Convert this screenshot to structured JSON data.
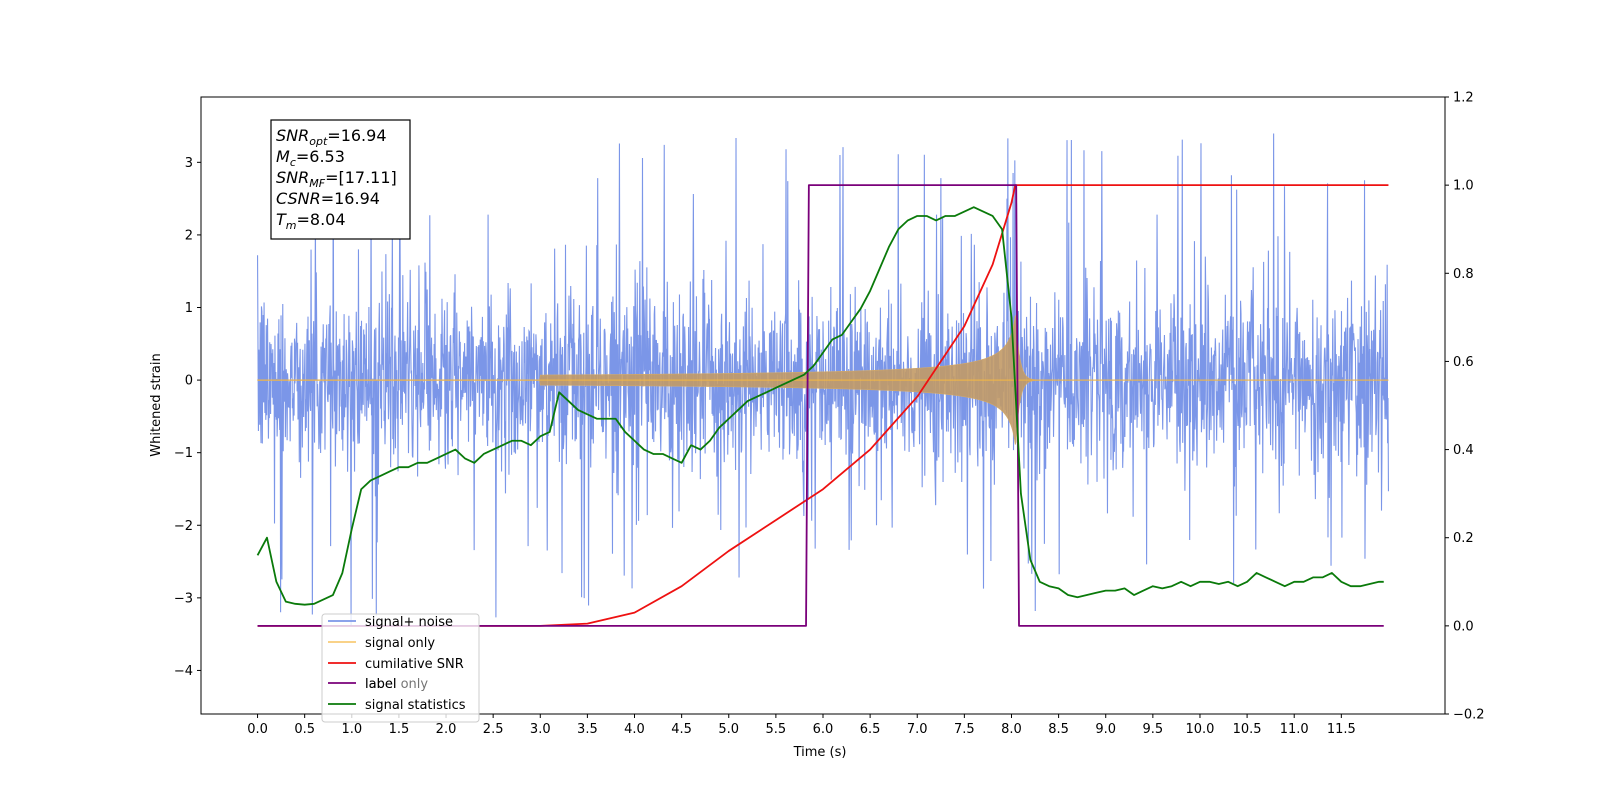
{
  "chart_data": {
    "type": "line",
    "xlabel": "Time (s)",
    "ylabel": "Whitened strain",
    "xlim": [
      -0.6,
      12.6
    ],
    "ylim": [
      -4.6,
      3.9
    ],
    "ylim_right": [
      -0.2,
      1.2
    ],
    "grid": false,
    "legend_position": "lower-left",
    "x_ticks": [
      "0.0",
      "0.5",
      "1.0",
      "1.5",
      "2.0",
      "2.5",
      "3.0",
      "3.5",
      "4.0",
      "4.5",
      "5.0",
      "5.5",
      "6.0",
      "6.5",
      "7.0",
      "7.5",
      "8.0",
      "8.5",
      "9.0",
      "9.5",
      "10.0",
      "10.5",
      "11.0",
      "11.5"
    ],
    "y_ticks_left": [
      "3",
      "2",
      "1",
      "0",
      "−1",
      "−2",
      "−3",
      "−4"
    ],
    "y_ticks_right": [
      "1.2",
      "1.0",
      "0.8",
      "0.6",
      "0.4",
      "0.2",
      "0.0",
      "−0.2"
    ],
    "annotation": {
      "lines": [
        {
          "sym": "SNR",
          "sub": "opt",
          "val": "=16.94"
        },
        {
          "sym": "M",
          "sub": "c",
          "val": "=6.53"
        },
        {
          "sym": "SNR",
          "sub": "MF",
          "val": "=[17.11]"
        },
        {
          "sym": "CSNR",
          "sub": "",
          "val": "=16.94"
        },
        {
          "sym": "T",
          "sub": "m",
          "val": "=8.04"
        }
      ]
    },
    "series": [
      {
        "name": "signal+ noise",
        "color": "#7b96e8",
        "axis": "left",
        "description": "whitened noise, amplitude envelope ~ ±1.3 with spikes up to ±3.5, from 0.0 to 12.0 s",
        "envelope": {
          "low": -1.3,
          "high": 1.3,
          "spike_max": 3.55,
          "spike_min": -4.1
        }
      },
      {
        "name": "signal only",
        "color": "#f5b841",
        "axis": "left",
        "description": "chirp signal growing from t≈3.0 s to merger at t≈8.04 s",
        "chirp": {
          "t_start": 3.0,
          "t_merge": 8.04,
          "peak_amplitude": 1.05
        }
      },
      {
        "name": "cumilative SNR",
        "color": "#ee1111",
        "axis": "right",
        "x": [
          0.0,
          3.0,
          3.5,
          4.0,
          4.5,
          5.0,
          5.5,
          6.0,
          6.5,
          7.0,
          7.5,
          7.8,
          8.0,
          8.04,
          12.0
        ],
        "y": [
          0.0,
          0.0,
          0.005,
          0.03,
          0.09,
          0.17,
          0.24,
          0.31,
          0.4,
          0.52,
          0.68,
          0.82,
          0.96,
          1.0,
          1.0
        ]
      },
      {
        "name": "label",
        "color": "#7a007a",
        "axis": "right",
        "x": [
          0.0,
          5.82,
          5.85,
          8.05,
          8.08,
          11.95
        ],
        "y": [
          0.0,
          0.0,
          1.0,
          1.0,
          0.0,
          0.0
        ]
      },
      {
        "name": "label only",
        "color": "#e8a6e8",
        "axis": "right",
        "x": [],
        "y": []
      },
      {
        "name": "signal statistics",
        "color": "#0a7a0a",
        "axis": "right",
        "x": [
          0.0,
          0.1,
          0.2,
          0.3,
          0.4,
          0.5,
          0.6,
          0.7,
          0.8,
          0.9,
          1.0,
          1.1,
          1.2,
          1.3,
          1.4,
          1.5,
          1.6,
          1.7,
          1.8,
          1.9,
          2.0,
          2.1,
          2.2,
          2.3,
          2.4,
          2.5,
          2.6,
          2.7,
          2.8,
          2.9,
          3.0,
          3.1,
          3.2,
          3.3,
          3.4,
          3.5,
          3.6,
          3.7,
          3.8,
          3.9,
          4.0,
          4.1,
          4.2,
          4.3,
          4.4,
          4.5,
          4.6,
          4.7,
          4.8,
          4.9,
          5.0,
          5.1,
          5.2,
          5.3,
          5.4,
          5.5,
          5.6,
          5.7,
          5.8,
          5.9,
          6.0,
          6.1,
          6.2,
          6.3,
          6.4,
          6.5,
          6.6,
          6.7,
          6.8,
          6.9,
          7.0,
          7.1,
          7.2,
          7.3,
          7.4,
          7.5,
          7.6,
          7.7,
          7.8,
          7.9,
          8.0,
          8.1,
          8.2,
          8.3,
          8.4,
          8.5,
          8.6,
          8.7,
          8.8,
          8.9,
          9.0,
          9.1,
          9.2,
          9.3,
          9.4,
          9.5,
          9.6,
          9.7,
          9.8,
          9.9,
          10.0,
          10.1,
          10.2,
          10.3,
          10.4,
          10.5,
          10.6,
          10.7,
          10.8,
          10.9,
          11.0,
          11.1,
          11.2,
          11.3,
          11.4,
          11.5,
          11.6,
          11.7,
          11.8,
          11.9,
          11.95
        ],
        "y": [
          0.16,
          0.2,
          0.1,
          0.055,
          0.05,
          0.048,
          0.05,
          0.06,
          0.07,
          0.12,
          0.22,
          0.31,
          0.33,
          0.34,
          0.35,
          0.36,
          0.36,
          0.37,
          0.37,
          0.38,
          0.39,
          0.4,
          0.38,
          0.37,
          0.39,
          0.4,
          0.41,
          0.42,
          0.42,
          0.41,
          0.43,
          0.44,
          0.53,
          0.51,
          0.49,
          0.48,
          0.47,
          0.47,
          0.47,
          0.44,
          0.42,
          0.4,
          0.39,
          0.39,
          0.38,
          0.37,
          0.41,
          0.4,
          0.42,
          0.45,
          0.47,
          0.49,
          0.51,
          0.52,
          0.53,
          0.54,
          0.55,
          0.56,
          0.57,
          0.59,
          0.62,
          0.65,
          0.66,
          0.69,
          0.72,
          0.76,
          0.81,
          0.86,
          0.9,
          0.92,
          0.93,
          0.93,
          0.92,
          0.93,
          0.93,
          0.94,
          0.95,
          0.94,
          0.93,
          0.9,
          0.7,
          0.3,
          0.15,
          0.1,
          0.09,
          0.085,
          0.07,
          0.065,
          0.07,
          0.075,
          0.08,
          0.08,
          0.085,
          0.07,
          0.08,
          0.09,
          0.085,
          0.09,
          0.1,
          0.09,
          0.1,
          0.1,
          0.095,
          0.1,
          0.09,
          0.1,
          0.12,
          0.11,
          0.1,
          0.09,
          0.1,
          0.1,
          0.11,
          0.11,
          0.12,
          0.1,
          0.09,
          0.09,
          0.095,
          0.1,
          0.1
        ]
      }
    ]
  }
}
